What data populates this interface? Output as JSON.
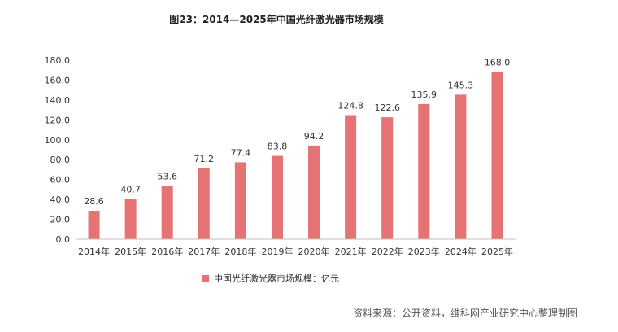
{
  "chart_data": {
    "type": "bar",
    "title": "图23：2014—2025年中国光纤激光器市场规模",
    "categories": [
      "2014年",
      "2015年",
      "2016年",
      "2017年",
      "2018年",
      "2019年",
      "2020年",
      "2021年",
      "2022年",
      "2023年",
      "2024年",
      "2025年"
    ],
    "series": [
      {
        "name": "中国光纤激光器市场规模：亿元",
        "values": [
          28.6,
          40.7,
          53.6,
          71.2,
          77.4,
          83.8,
          94.2,
          124.8,
          122.6,
          135.9,
          145.3,
          168.0
        ]
      }
    ],
    "value_labels": [
      "28.6",
      "40.7",
      "53.6",
      "71.2",
      "77.4",
      "83.8",
      "94.2",
      "124.8",
      "122.6",
      "135.9",
      "145.3",
      "168.0"
    ],
    "y_ticks": [
      "0.0",
      "20.0",
      "40.0",
      "60.0",
      "80.0",
      "100.0",
      "120.0",
      "140.0",
      "160.0",
      "180.0"
    ],
    "ylim": [
      0,
      180
    ],
    "bar_color": "#e57373",
    "legend_position": "bottom",
    "grid": false
  },
  "source": "资料来源：公开资料，维科网产业研究中心整理制图"
}
